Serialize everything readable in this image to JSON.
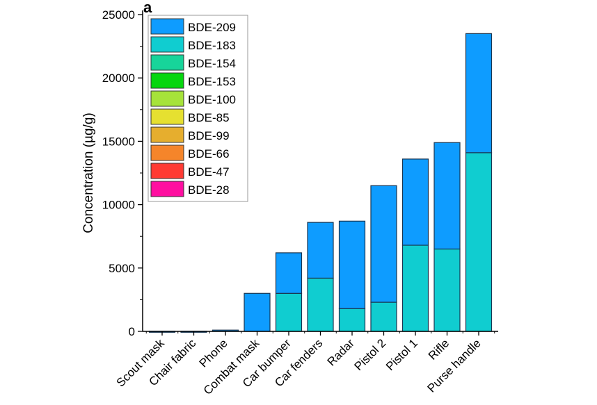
{
  "chart_data": {
    "type": "bar",
    "stacked": true,
    "panel_label": "a",
    "title": "",
    "xlabel": "",
    "ylabel": "Concentration (µg/g)",
    "ylim": [
      0,
      25000
    ],
    "yticks": [
      0,
      5000,
      10000,
      15000,
      20000,
      25000
    ],
    "grid": false,
    "legend_position": "top-left",
    "categories": [
      "Scout mask",
      "Chair fabric",
      "Phone",
      "Combat mask",
      "Car bumper",
      "Car fenders",
      "Radar",
      "Pistol 2",
      "Pistol 1",
      "Rifle",
      "Purse handle"
    ],
    "series": [
      {
        "name": "BDE-28",
        "color": "#ff0fa0",
        "values": [
          0,
          0,
          0,
          0,
          0,
          0,
          0,
          0,
          0,
          0,
          0
        ]
      },
      {
        "name": "BDE-47",
        "color": "#ff3b33",
        "values": [
          0,
          0,
          0,
          0,
          0,
          0,
          0,
          0,
          0,
          0,
          0
        ]
      },
      {
        "name": "BDE-66",
        "color": "#f5852a",
        "values": [
          0,
          0,
          0,
          0,
          0,
          0,
          0,
          0,
          0,
          0,
          0
        ]
      },
      {
        "name": "BDE-99",
        "color": "#e6ae2e",
        "values": [
          0,
          0,
          0,
          0,
          0,
          0,
          0,
          0,
          0,
          0,
          0
        ]
      },
      {
        "name": "BDE-85",
        "color": "#e6e030",
        "values": [
          0,
          0,
          0,
          0,
          0,
          0,
          0,
          0,
          0,
          0,
          0
        ]
      },
      {
        "name": "BDE-100",
        "color": "#a6e33a",
        "values": [
          0,
          0,
          0,
          0,
          0,
          0,
          0,
          0,
          0,
          0,
          0
        ]
      },
      {
        "name": "BDE-153",
        "color": "#06d60e",
        "values": [
          0,
          0,
          0,
          0,
          0,
          0,
          0,
          0,
          0,
          0,
          0
        ]
      },
      {
        "name": "BDE-154",
        "color": "#17d49a",
        "values": [
          0,
          0,
          0,
          0,
          0,
          0,
          0,
          0,
          0,
          0,
          0
        ]
      },
      {
        "name": "BDE-183",
        "color": "#10cdd0",
        "values": [
          0,
          0,
          0,
          0,
          3000,
          4200,
          1800,
          2300,
          6800,
          6500,
          14100
        ]
      },
      {
        "name": "BDE-209",
        "color": "#0e9cff",
        "values": [
          10,
          10,
          100,
          3000,
          3200,
          4400,
          6900,
          9200,
          6800,
          8400,
          9400
        ]
      }
    ]
  }
}
